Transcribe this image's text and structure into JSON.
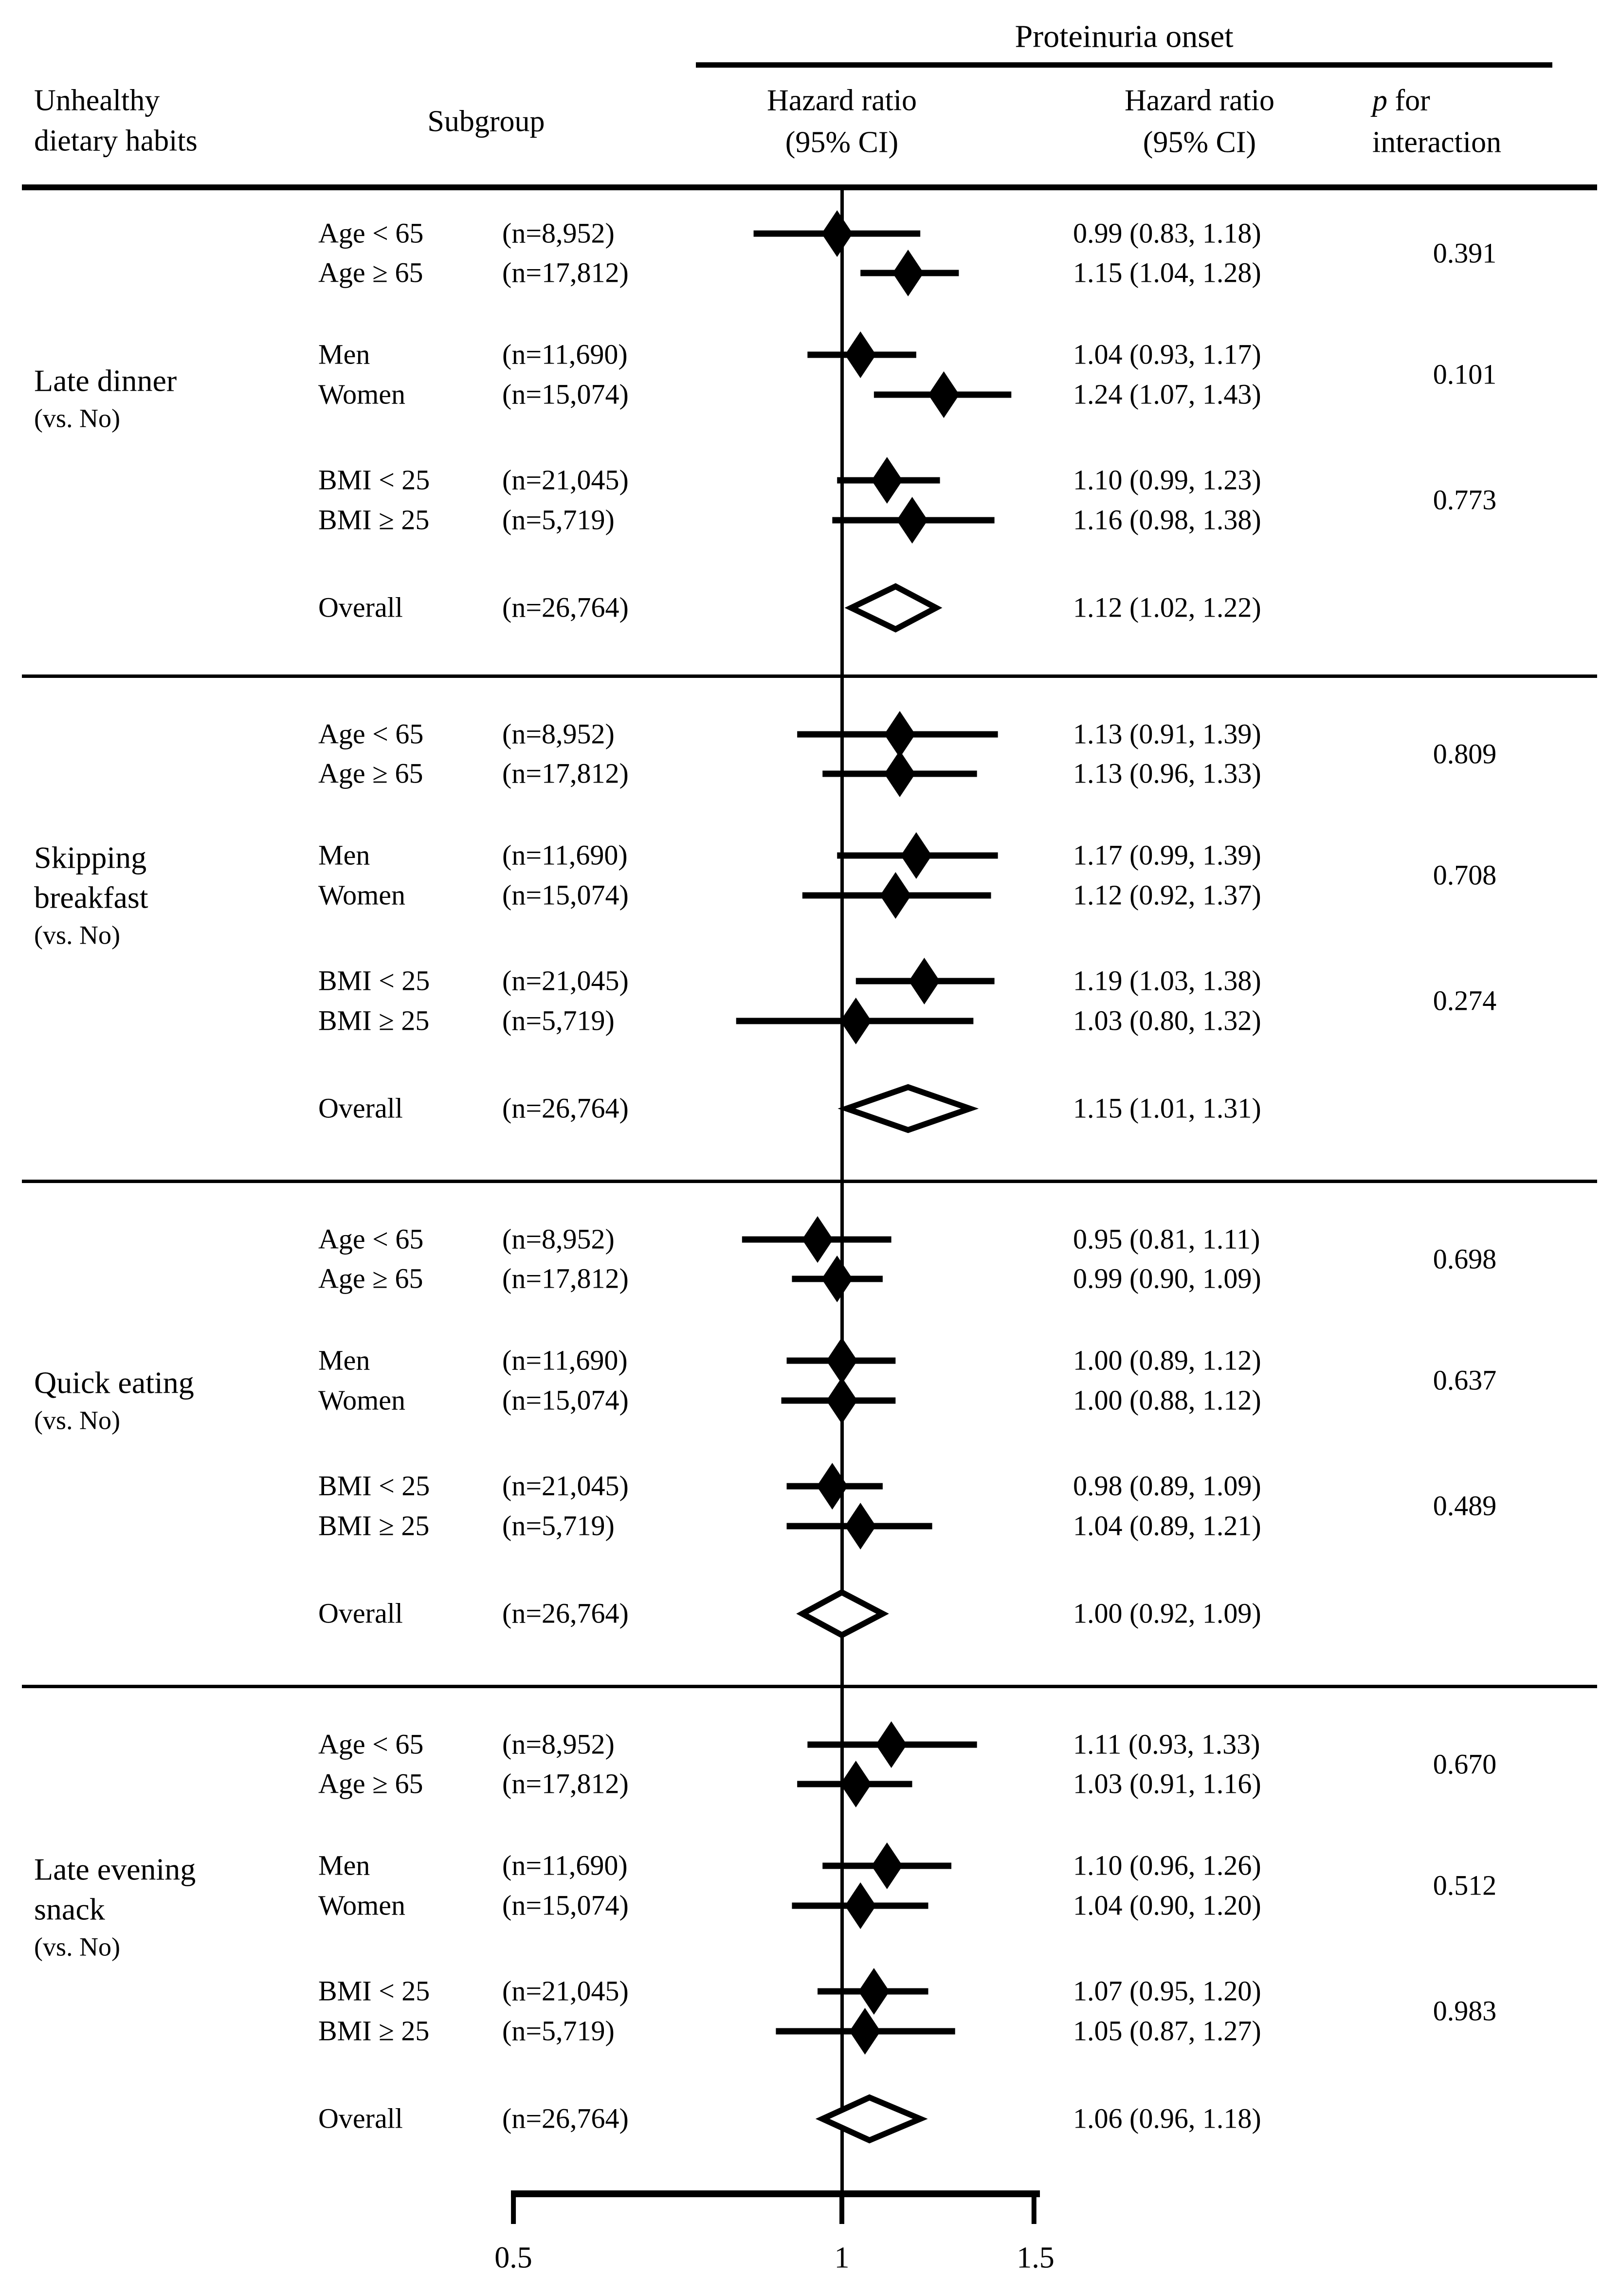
{
  "colors": {
    "ink": "#000000",
    "background": "#ffffff"
  },
  "title": "Proteinuria onset",
  "columns": {
    "habit_lines": [
      "Unhealthy",
      "dietary habits"
    ],
    "subgroup": "Subgroup",
    "plot_header_lines": [
      "Hazard ratio",
      "(95% CI)"
    ],
    "hr_header_lines": [
      "Hazard ratio",
      "(95% CI)"
    ],
    "p_italic": "p",
    "p_rest": " for",
    "p_line2": "interaction"
  },
  "axis": {
    "scale": "log10",
    "tick_labels": [
      "0.5",
      "1",
      "1.5"
    ],
    "tick_values": [
      0.5,
      1,
      1.5
    ],
    "reference_line": 1
  },
  "chart_data": {
    "type": "forest",
    "outcome": "Proteinuria onset",
    "x_axis": {
      "scale": "log",
      "ticks": [
        0.5,
        1,
        1.5
      ],
      "reference": 1,
      "range": [
        0.5,
        1.5
      ]
    },
    "sections": [
      {
        "habit_lines": [
          "Late dinner"
        ],
        "vs_label": "(vs. No)",
        "rows": [
          {
            "subgroup": "Age < 65",
            "n": "(n=8,952)",
            "hr": 0.99,
            "lo": 0.83,
            "hi": 1.18,
            "label": "0.99 (0.83, 1.18)",
            "overall": false
          },
          {
            "subgroup": "Age ≥ 65",
            "n": "(n=17,812)",
            "hr": 1.15,
            "lo": 1.04,
            "hi": 1.28,
            "label": "1.15 (1.04, 1.28)",
            "overall": false
          },
          {
            "subgroup": "Men",
            "n": "(n=11,690)",
            "hr": 1.04,
            "lo": 0.93,
            "hi": 1.17,
            "label": "1.04 (0.93, 1.17)",
            "overall": false
          },
          {
            "subgroup": "Women",
            "n": "(n=15,074)",
            "hr": 1.24,
            "lo": 1.07,
            "hi": 1.43,
            "label": "1.24 (1.07, 1.43)",
            "overall": false
          },
          {
            "subgroup": "BMI < 25",
            "n": "(n=21,045)",
            "hr": 1.1,
            "lo": 0.99,
            "hi": 1.23,
            "label": "1.10 (0.99, 1.23)",
            "overall": false
          },
          {
            "subgroup": "BMI ≥ 25",
            "n": "(n=5,719)",
            "hr": 1.16,
            "lo": 0.98,
            "hi": 1.38,
            "label": "1.16 (0.98, 1.38)",
            "overall": false
          },
          {
            "subgroup": "Overall",
            "n": "(n=26,764)",
            "hr": 1.12,
            "lo": 1.02,
            "hi": 1.22,
            "label": "1.12 (1.02, 1.22)",
            "overall": true
          }
        ],
        "p_values": [
          "0.391",
          "0.101",
          "0.773"
        ]
      },
      {
        "habit_lines": [
          "Skipping",
          "breakfast"
        ],
        "vs_label": "(vs. No)",
        "rows": [
          {
            "subgroup": "Age < 65",
            "n": "(n=8,952)",
            "hr": 1.13,
            "lo": 0.91,
            "hi": 1.39,
            "label": "1.13 (0.91, 1.39)",
            "overall": false
          },
          {
            "subgroup": "Age ≥ 65",
            "n": "(n=17,812)",
            "hr": 1.13,
            "lo": 0.96,
            "hi": 1.33,
            "label": "1.13 (0.96, 1.33)",
            "overall": false
          },
          {
            "subgroup": "Men",
            "n": "(n=11,690)",
            "hr": 1.17,
            "lo": 0.99,
            "hi": 1.39,
            "label": "1.17 (0.99, 1.39)",
            "overall": false
          },
          {
            "subgroup": "Women",
            "n": "(n=15,074)",
            "hr": 1.12,
            "lo": 0.92,
            "hi": 1.37,
            "label": "1.12 (0.92, 1.37)",
            "overall": false
          },
          {
            "subgroup": "BMI < 25",
            "n": "(n=21,045)",
            "hr": 1.19,
            "lo": 1.03,
            "hi": 1.38,
            "label": "1.19 (1.03, 1.38)",
            "overall": false
          },
          {
            "subgroup": "BMI ≥ 25",
            "n": "(n=5,719)",
            "hr": 1.03,
            "lo": 0.8,
            "hi": 1.32,
            "label": "1.03 (0.80, 1.32)",
            "overall": false
          },
          {
            "subgroup": "Overall",
            "n": "(n=26,764)",
            "hr": 1.15,
            "lo": 1.01,
            "hi": 1.31,
            "label": "1.15 (1.01, 1.31)",
            "overall": true
          }
        ],
        "p_values": [
          "0.809",
          "0.708",
          "0.274"
        ]
      },
      {
        "habit_lines": [
          "Quick eating"
        ],
        "vs_label": "(vs. No)",
        "rows": [
          {
            "subgroup": "Age < 65",
            "n": "(n=8,952)",
            "hr": 0.95,
            "lo": 0.81,
            "hi": 1.11,
            "label": "0.95 (0.81, 1.11)",
            "overall": false
          },
          {
            "subgroup": "Age ≥ 65",
            "n": "(n=17,812)",
            "hr": 0.99,
            "lo": 0.9,
            "hi": 1.09,
            "label": "0.99 (0.90, 1.09)",
            "overall": false
          },
          {
            "subgroup": "Men",
            "n": "(n=11,690)",
            "hr": 1.0,
            "lo": 0.89,
            "hi": 1.12,
            "label": "1.00 (0.89, 1.12)",
            "overall": false
          },
          {
            "subgroup": "Women",
            "n": "(n=15,074)",
            "hr": 1.0,
            "lo": 0.88,
            "hi": 1.12,
            "label": "1.00 (0.88, 1.12)",
            "overall": false
          },
          {
            "subgroup": "BMI < 25",
            "n": "(n=21,045)",
            "hr": 0.98,
            "lo": 0.89,
            "hi": 1.09,
            "label": "0.98 (0.89, 1.09)",
            "overall": false
          },
          {
            "subgroup": "BMI ≥ 25",
            "n": "(n=5,719)",
            "hr": 1.04,
            "lo": 0.89,
            "hi": 1.21,
            "label": "1.04 (0.89, 1.21)",
            "overall": false
          },
          {
            "subgroup": "Overall",
            "n": "(n=26,764)",
            "hr": 1.0,
            "lo": 0.92,
            "hi": 1.09,
            "label": "1.00 (0.92, 1.09)",
            "overall": true
          }
        ],
        "p_values": [
          "0.698",
          "0.637",
          "0.489"
        ]
      },
      {
        "habit_lines": [
          "Late evening",
          "snack"
        ],
        "vs_label": "(vs. No)",
        "rows": [
          {
            "subgroup": "Age < 65",
            "n": "(n=8,952)",
            "hr": 1.11,
            "lo": 0.93,
            "hi": 1.33,
            "label": "1.11 (0.93, 1.33)",
            "overall": false
          },
          {
            "subgroup": "Age ≥ 65",
            "n": "(n=17,812)",
            "hr": 1.03,
            "lo": 0.91,
            "hi": 1.16,
            "label": "1.03 (0.91, 1.16)",
            "overall": false
          },
          {
            "subgroup": "Men",
            "n": "(n=11,690)",
            "hr": 1.1,
            "lo": 0.96,
            "hi": 1.26,
            "label": "1.10 (0.96, 1.26)",
            "overall": false
          },
          {
            "subgroup": "Women",
            "n": "(n=15,074)",
            "hr": 1.04,
            "lo": 0.9,
            "hi": 1.2,
            "label": "1.04 (0.90, 1.20)",
            "overall": false
          },
          {
            "subgroup": "BMI < 25",
            "n": "(n=21,045)",
            "hr": 1.07,
            "lo": 0.95,
            "hi": 1.2,
            "label": "1.07 (0.95, 1.20)",
            "overall": false
          },
          {
            "subgroup": "BMI ≥ 25",
            "n": "(n=5,719)",
            "hr": 1.05,
            "lo": 0.87,
            "hi": 1.27,
            "label": "1.05 (0.87, 1.27)",
            "overall": false
          },
          {
            "subgroup": "Overall",
            "n": "(n=26,764)",
            "hr": 1.06,
            "lo": 0.96,
            "hi": 1.18,
            "label": "1.06 (0.96, 1.18)",
            "overall": true
          }
        ],
        "p_values": [
          "0.670",
          "0.512",
          "0.983"
        ]
      }
    ]
  }
}
